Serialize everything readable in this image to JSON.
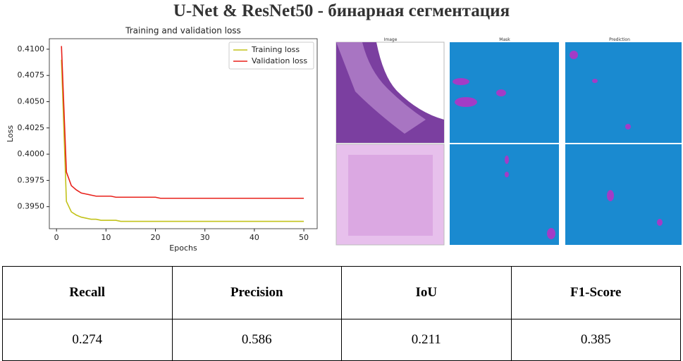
{
  "title": "U-Net & ResNet50 - бинарная сегментация",
  "chart_data": {
    "type": "line",
    "title": "Training and validation loss",
    "xlabel": "Epochs",
    "ylabel": "Loss",
    "x": [
      1,
      2,
      3,
      4,
      5,
      6,
      7,
      8,
      9,
      10,
      11,
      12,
      13,
      14,
      15,
      16,
      17,
      18,
      19,
      20,
      21,
      22,
      23,
      24,
      25,
      26,
      27,
      28,
      29,
      30,
      31,
      32,
      33,
      34,
      35,
      36,
      37,
      38,
      39,
      40,
      41,
      42,
      43,
      44,
      45,
      46,
      47,
      48,
      49,
      50
    ],
    "series": [
      {
        "name": "Training loss",
        "color": "#c2c21a",
        "values": [
          0.409,
          0.3955,
          0.3945,
          0.3942,
          0.394,
          0.3939,
          0.3938,
          0.3938,
          0.3937,
          0.3937,
          0.3937,
          0.3937,
          0.3936,
          0.3936,
          0.3936,
          0.3936,
          0.3936,
          0.3936,
          0.3936,
          0.3936,
          0.3936,
          0.3936,
          0.3936,
          0.3936,
          0.3936,
          0.3936,
          0.3936,
          0.3936,
          0.3936,
          0.3936,
          0.3936,
          0.3936,
          0.3936,
          0.3936,
          0.3936,
          0.3936,
          0.3936,
          0.3936,
          0.3936,
          0.3936,
          0.3936,
          0.3936,
          0.3936,
          0.3936,
          0.3936,
          0.3936,
          0.3936,
          0.3936,
          0.3936,
          0.3936
        ]
      },
      {
        "name": "Validation loss",
        "color": "#e8201a",
        "values": [
          0.4103,
          0.3983,
          0.397,
          0.3966,
          0.3963,
          0.3962,
          0.3961,
          0.396,
          0.396,
          0.396,
          0.396,
          0.3959,
          0.3959,
          0.3959,
          0.3959,
          0.3959,
          0.3959,
          0.3959,
          0.3959,
          0.3959,
          0.3958,
          0.3958,
          0.3958,
          0.3958,
          0.3958,
          0.3958,
          0.3958,
          0.3958,
          0.3958,
          0.3958,
          0.3958,
          0.3958,
          0.3958,
          0.3958,
          0.3958,
          0.3958,
          0.3958,
          0.3958,
          0.3958,
          0.3958,
          0.3958,
          0.3958,
          0.3958,
          0.3958,
          0.3958,
          0.3958,
          0.3958,
          0.3958,
          0.3958,
          0.3958
        ]
      }
    ],
    "xlim": [
      -1.45,
      52.7
    ],
    "ylim": [
      0.3929,
      0.411
    ],
    "xticks": [
      0,
      10,
      20,
      30,
      40,
      50
    ],
    "yticks": [
      {
        "value": 0.395,
        "label": "0.3950"
      },
      0.3975,
      {
        "value": 0.4,
        "label": "0.4000"
      },
      0.4025,
      {
        "value": 0.405,
        "label": "0.4050"
      },
      0.4075,
      {
        "value": 0.41,
        "label": "0.4100"
      }
    ],
    "legend": "upper right"
  },
  "images": {
    "columns": [
      "Image",
      "Mask",
      "Prediction"
    ]
  },
  "table": {
    "header": [
      "Recall",
      "Precision",
      "IoU",
      "F1-Score"
    ],
    "rows": [
      [
        0.274,
        0.586,
        0.211,
        0.385
      ]
    ]
  }
}
